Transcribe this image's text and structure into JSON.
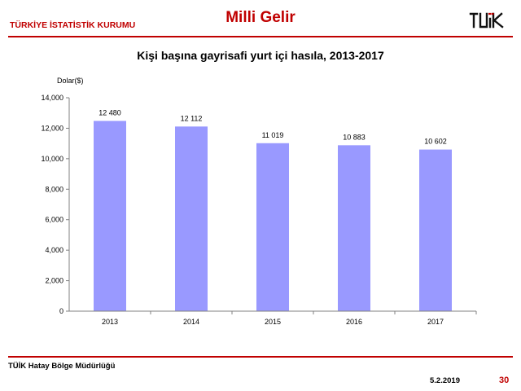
{
  "header": {
    "org_name": "TÜRKİYE İSTATİSTİK KURUMU",
    "section_title": "Milli Gelir",
    "logo_icon": "tuik-logo-icon"
  },
  "chart_data": {
    "type": "bar",
    "title": "Kişi başına gayrisafi yurt içi hasıla, 2013-2017",
    "ylabel": "Dolar($)",
    "xlabel": "",
    "categories": [
      "2013",
      "2014",
      "2015",
      "2016",
      "2017"
    ],
    "values": [
      12480,
      12112,
      11019,
      10883,
      10602
    ],
    "data_labels": [
      "12 480",
      "12 112",
      "11 019",
      "10 883",
      "10 602"
    ],
    "ylim": [
      0,
      14000
    ],
    "yticks": [
      0,
      2000,
      4000,
      6000,
      8000,
      10000,
      12000,
      14000
    ],
    "ytick_labels": [
      "0",
      "2,000",
      "4,000",
      "6,000",
      "8,000",
      "10,000",
      "12,000",
      "14,000"
    ],
    "grid": false,
    "bar_color": "#9999ff"
  },
  "footer": {
    "office": "TÜİK Hatay Bölge Müdürlüğü",
    "date": "5.2.2019",
    "page": "30"
  },
  "colors": {
    "accent": "#c00000"
  }
}
